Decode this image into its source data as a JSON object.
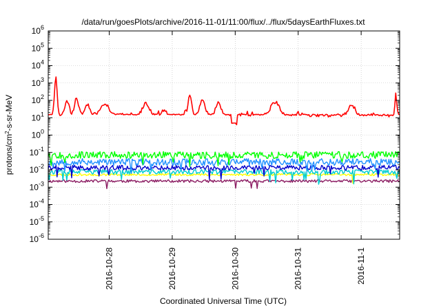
{
  "chart_data": {
    "type": "line",
    "title": "/data/run/goesPlots/archive/2016-11-01/11:00/flux/../flux/5daysEarthFluxes.txt",
    "xlabel": "Coordinated Universal Time (UTC)",
    "ylabel": {
      "pre": "protons/cm",
      "sup": "2",
      "post": "-s-sr-MeV"
    },
    "x_range_days": [
      0,
      5.58
    ],
    "y_scale": "log",
    "y_exp_range": [
      -6,
      6
    ],
    "y_tick_base": "10",
    "y_tick_exponents": [
      "-6",
      "-5",
      "-4",
      "-3",
      "-2",
      "-1",
      "0",
      "1",
      "2",
      "3",
      "4",
      "5",
      "6"
    ],
    "x_ticks": [
      {
        "label": "2016-10-28",
        "day": 0.9688
      },
      {
        "label": "2016-10-29",
        "day": 1.9688
      },
      {
        "label": "2016-10-30",
        "day": 2.9688
      },
      {
        "label": "2016-10-31",
        "day": 3.9688
      },
      {
        "label": "2016-11-1",
        "day": 4.9688
      }
    ],
    "grid": true,
    "legend": "none",
    "series": [
      {
        "color": "#8b1c62",
        "base": -2.65,
        "amp": 0.08,
        "spikes": 0.1,
        "seed": 11,
        "profile": "flat"
      },
      {
        "color": "#ffff00",
        "base": -2.28,
        "amp": 0.06,
        "spikes": 0.05,
        "seed": 23,
        "profile": "flat"
      },
      {
        "color": "#00ced1",
        "base": -2.12,
        "amp": 0.14,
        "spikes": 0.3,
        "seed": 37,
        "profile": "flat"
      },
      {
        "color": "#0000cd",
        "base": -1.88,
        "amp": 0.14,
        "spikes": 0.2,
        "seed": 41,
        "profile": "flat"
      },
      {
        "color": "#1e90ff",
        "base": -1.55,
        "amp": 0.2,
        "spikes": 0.25,
        "seed": 53,
        "profile": "flat"
      },
      {
        "color": "#00ff00",
        "base": -1.15,
        "amp": 0.2,
        "spikes": 0.15,
        "seed": 67,
        "profile": "flat"
      },
      {
        "color": "#ff0000",
        "base": 1.1,
        "amp": 0.3,
        "spikes": 0.0,
        "seed": 79,
        "profile": "red",
        "events": [
          {
            "day": 0.12,
            "log": 3.35,
            "w": 0.03
          },
          {
            "day": 0.3,
            "log": 2.0,
            "w": 0.05
          },
          {
            "day": 0.45,
            "log": 2.1,
            "w": 0.05
          },
          {
            "day": 0.62,
            "log": 1.8,
            "w": 0.06
          },
          {
            "day": 0.9,
            "log": 1.8,
            "w": 0.1
          },
          {
            "day": 1.55,
            "log": 1.8,
            "w": 0.08
          },
          {
            "day": 2.25,
            "log": 2.3,
            "w": 0.04
          },
          {
            "day": 2.45,
            "log": 2.0,
            "w": 0.06
          },
          {
            "day": 2.7,
            "log": 1.9,
            "w": 0.06
          },
          {
            "day": 3.6,
            "log": 1.9,
            "w": 0.1
          },
          {
            "day": 4.82,
            "log": 1.7,
            "w": 0.08
          },
          {
            "day": 5.52,
            "log": 2.35,
            "w": 0.02
          }
        ]
      }
    ]
  }
}
